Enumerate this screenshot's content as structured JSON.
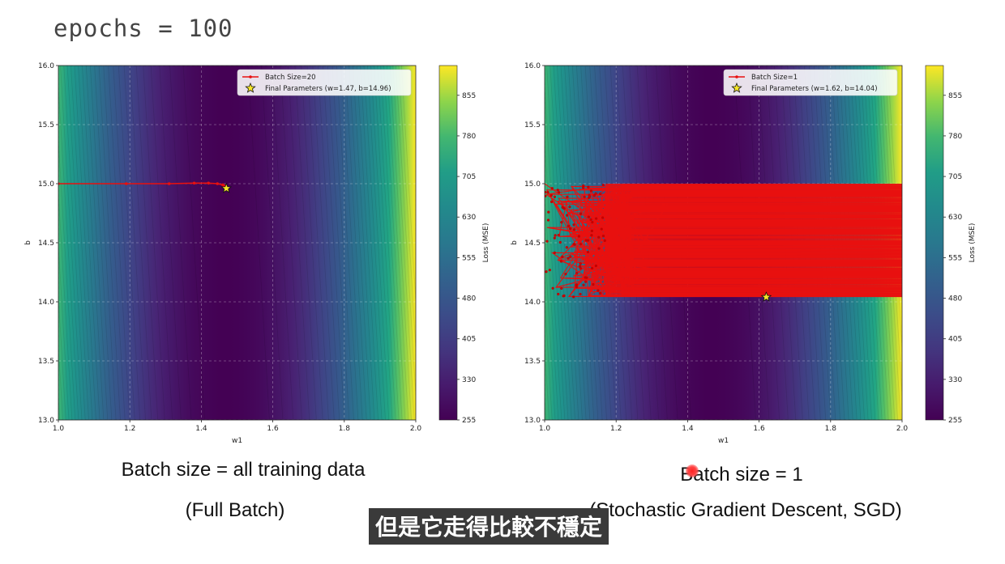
{
  "header": {
    "code": "epochs = 100"
  },
  "chart_data": [
    {
      "type": "heatmap",
      "xlabel": "w1",
      "ylabel": "b",
      "xlim": [
        1.0,
        2.0
      ],
      "ylim": [
        13.0,
        16.0
      ],
      "xticks": [
        "1.0",
        "1.2",
        "1.4",
        "1.6",
        "1.8",
        "2.0"
      ],
      "yticks": [
        "13.0",
        "13.5",
        "14.0",
        "14.5",
        "15.0",
        "15.5",
        "16.0"
      ],
      "colorbar": {
        "label": "Loss (MSE)",
        "ticks": [
          "255",
          "330",
          "405",
          "480",
          "555",
          "630",
          "705",
          "780",
          "855"
        ],
        "range": [
          255,
          910
        ]
      },
      "grid": true,
      "legend_position": "top-right",
      "legend": [
        "Batch Size=20",
        "Final Parameters (w=1.47, b=14.96)"
      ],
      "series": [
        {
          "name": "Batch Size=20",
          "color": "#e8100f",
          "points": [
            [
              1.0,
              15.0
            ],
            [
              1.19,
              15.0
            ],
            [
              1.31,
              15.0
            ],
            [
              1.38,
              15.005
            ],
            [
              1.42,
              15.005
            ],
            [
              1.445,
              15.0
            ],
            [
              1.46,
              14.99
            ],
            [
              1.465,
              14.98
            ],
            [
              1.47,
              14.97
            ],
            [
              1.47,
              14.96
            ]
          ]
        }
      ],
      "final_point": {
        "w": 1.47,
        "b": 14.96,
        "marker": "star",
        "color": "#f5e62a"
      }
    },
    {
      "type": "heatmap",
      "xlabel": "w1",
      "ylabel": "b",
      "xlim": [
        1.0,
        2.0
      ],
      "ylim": [
        13.0,
        16.0
      ],
      "xticks": [
        "1.0",
        "1.2",
        "1.4",
        "1.6",
        "1.8",
        "2.0"
      ],
      "yticks": [
        "13.0",
        "13.5",
        "14.0",
        "14.5",
        "15.0",
        "15.5",
        "16.0"
      ],
      "colorbar": {
        "label": "Loss (MSE)",
        "ticks": [
          "255",
          "330",
          "405",
          "480",
          "555",
          "630",
          "705",
          "780",
          "855"
        ],
        "range": [
          255,
          910
        ]
      },
      "grid": true,
      "legend_position": "top-right",
      "legend": [
        "Batch Size=1",
        "Final Parameters (w=1.62, b=14.04)"
      ],
      "series": [
        {
          "name": "Batch Size=1",
          "color": "#e8100f",
          "band_b": [
            14.04,
            15.0
          ],
          "band_w": [
            1.0,
            2.0
          ]
        }
      ],
      "final_point": {
        "w": 1.62,
        "b": 14.04,
        "marker": "star",
        "color": "#f5e62a"
      }
    }
  ],
  "captions": {
    "left_line1": "Batch size = all training data",
    "left_line2": "(Full Batch)",
    "right_line1": "Batch size = 1",
    "right_line2": "(Stochastic Gradient Descent, SGD)"
  },
  "subtitle": "但是它走得比較不穩定"
}
